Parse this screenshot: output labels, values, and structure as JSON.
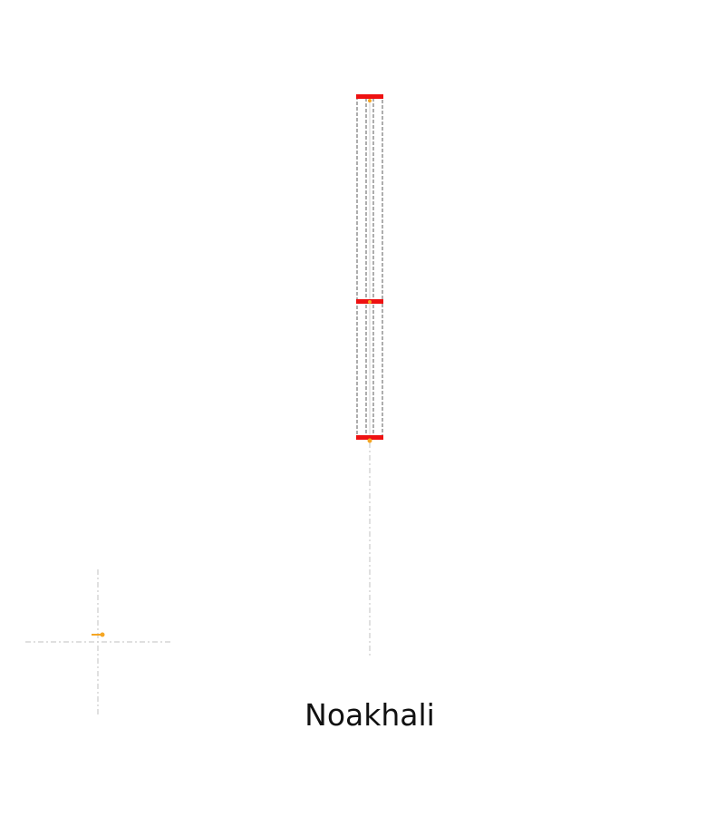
{
  "caption": "Noakhali",
  "colors": {
    "cap": "#ee1111",
    "frame": "#777777",
    "guide": "#d6d6d6",
    "marker": "#f5a623",
    "text": "#111111"
  }
}
